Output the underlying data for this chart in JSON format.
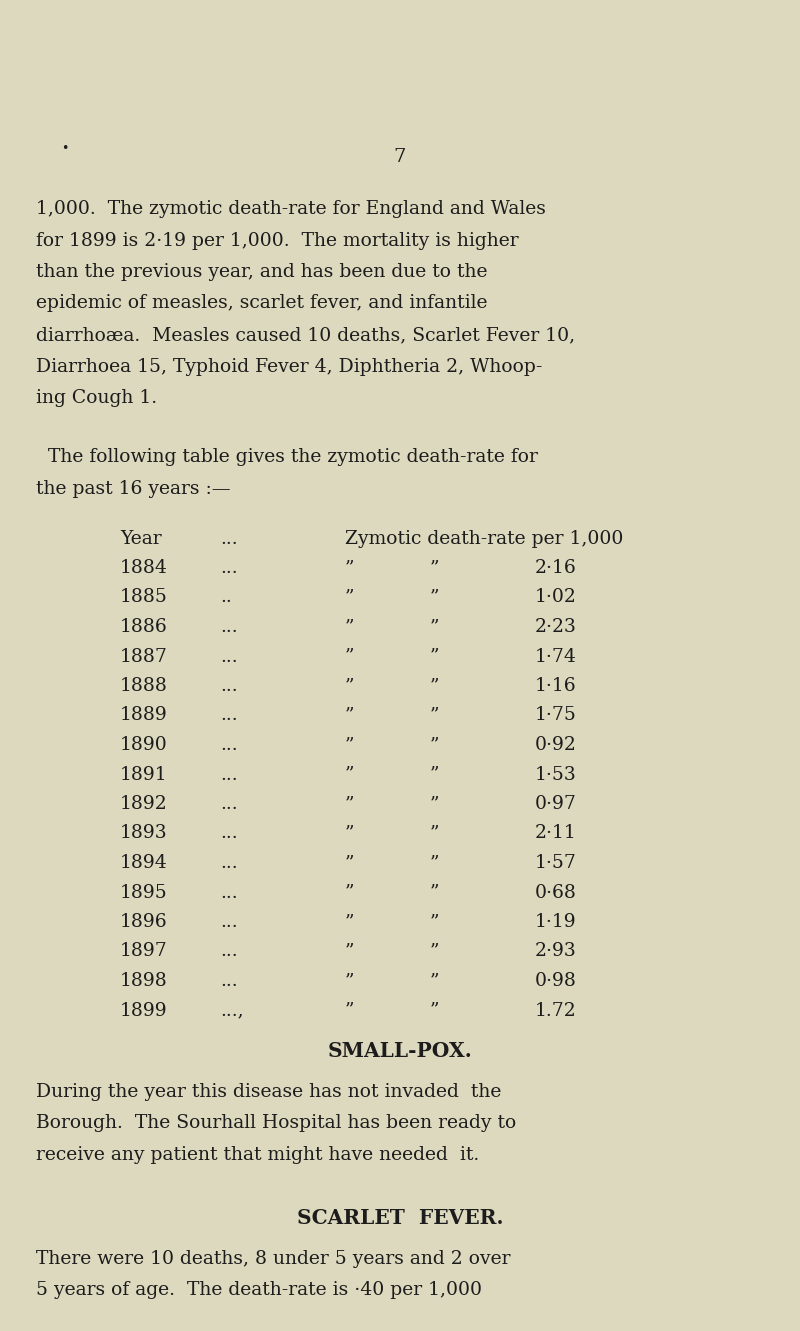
{
  "background_color": "#ddd9be",
  "page_number": "7",
  "dot_marker": "•",
  "paragraph1_lines": [
    "1,000.  The zymotic death-rate for England and Wales",
    "for 1899 is 2·19 per 1,000.  The mortality is higher",
    "than the previous year, and has been due to the",
    "epidemic of measles, scarlet fever, and infantile",
    "diarrhoæa.  Measles caused 10 deaths, Scarlet Fever 10,",
    "Diarrhoea 15, Typhoid Fever 4, Diphtheria 2, Whoop-",
    "ing Cough 1."
  ],
  "para2_lines": [
    "  The following table gives the zymotic death-rate for",
    "the past 16 years :—"
  ],
  "table_header": [
    "Year",
    "...",
    "Zymotic death-rate per 1,000"
  ],
  "table_rows": [
    [
      "1884",
      "...",
      "”",
      "”",
      "2·16"
    ],
    [
      "1885",
      "..",
      "”",
      "”",
      "1·02"
    ],
    [
      "1886",
      "...",
      "”",
      "”",
      "2·23"
    ],
    [
      "1887",
      "...",
      "”",
      "”",
      "1·74"
    ],
    [
      "1888",
      "...",
      "”",
      "”",
      "1·16"
    ],
    [
      "1889",
      "...",
      "”",
      "”",
      "1·75"
    ],
    [
      "1890",
      "...",
      "”",
      "”",
      "0·92"
    ],
    [
      "1891",
      "...",
      "”",
      "”",
      "1·53"
    ],
    [
      "1892",
      "...",
      "”",
      "”",
      "0·97"
    ],
    [
      "1893",
      "...",
      "”",
      "”",
      "2·11"
    ],
    [
      "1894",
      "...",
      "”",
      "”",
      "1·57"
    ],
    [
      "1895",
      "...",
      "”",
      "”",
      "0·68"
    ],
    [
      "1896",
      "...",
      "”",
      "”",
      "1·19"
    ],
    [
      "1897",
      "...",
      "”",
      "”",
      "2·93"
    ],
    [
      "1898",
      "...",
      "”",
      "”",
      "0·98"
    ],
    [
      "1899",
      "...,",
      "”",
      "”",
      "1.72"
    ]
  ],
  "smallpox_title": "SMALL-POX.",
  "smallpox_lines": [
    "During the year this disease has not invaded  the",
    "Borough.  The Sourhall Hospital has been ready to",
    "receive any patient that might have needed  it."
  ],
  "scarlet_title": "SCARLET  FEVER.",
  "scarlet_lines": [
    "There were 10 deaths, 8 under 5 years and 2 over",
    "5 years of age.  The death-rate is ·40 per 1,000"
  ],
  "text_color": "#1c1c1c",
  "fs_body": 13.5,
  "fs_title": 14.5,
  "fs_pagenum": 14
}
